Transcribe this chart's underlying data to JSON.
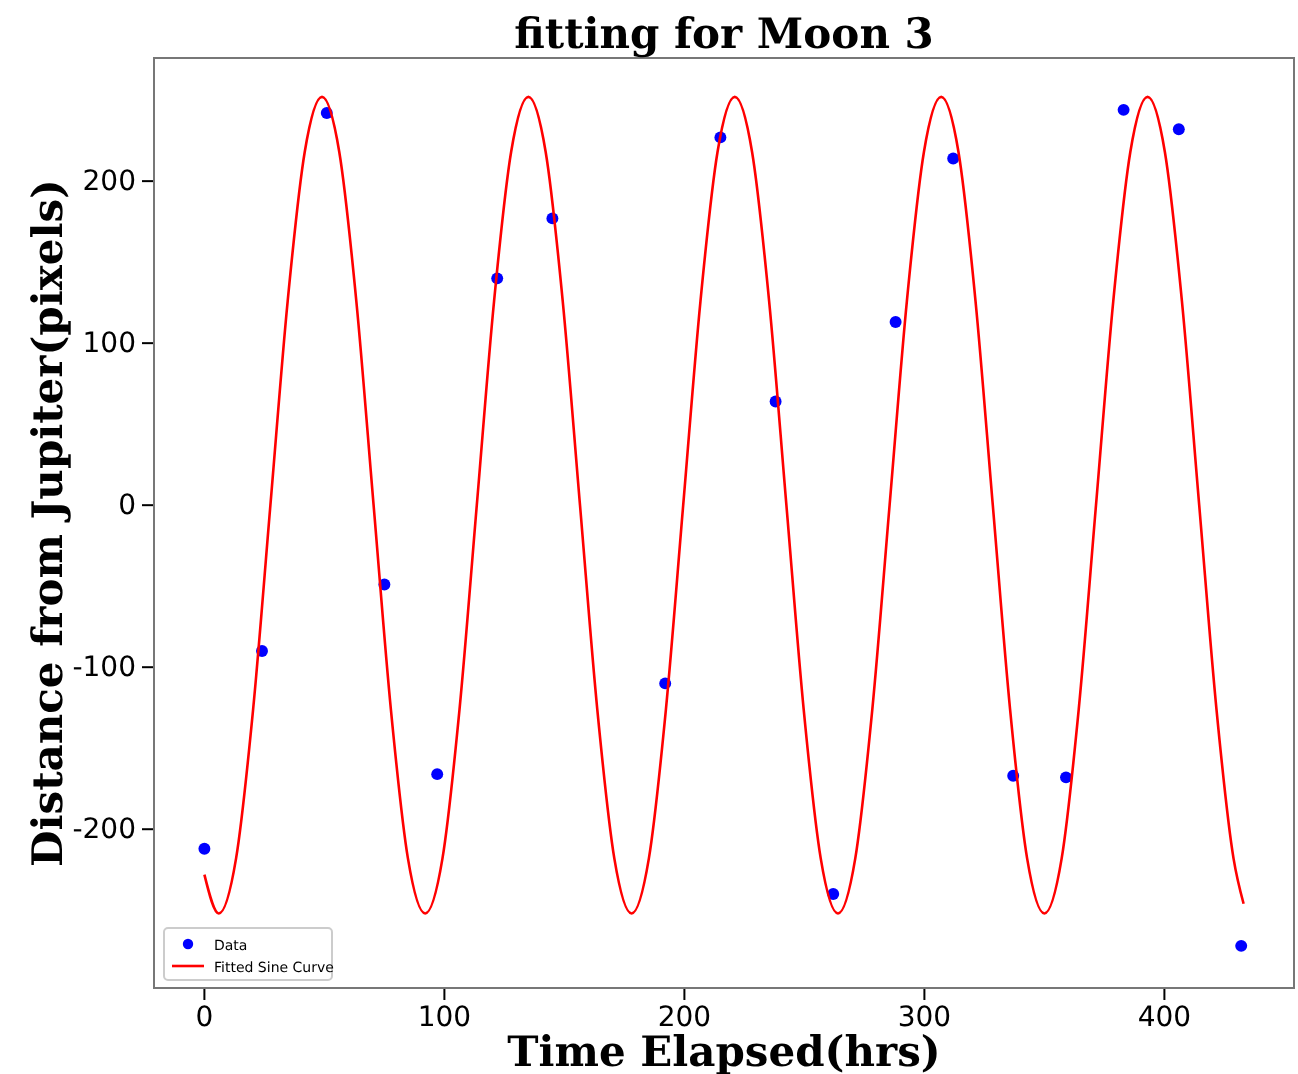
{
  "chart_data": {
    "type": "scatter",
    "title": "fitting for Moon 3",
    "xlabel": "Time Elapsed(hrs)",
    "ylabel": "Distance from Jupiter(pixels)",
    "xlim": [
      -21,
      454
    ],
    "ylim": [
      -298,
      276
    ],
    "xticks": [
      0,
      100,
      200,
      300,
      400
    ],
    "yticks": [
      -200,
      -100,
      0,
      100,
      200
    ],
    "grid": false,
    "legend": "bottom left",
    "series": [
      {
        "name": "Data",
        "color": "#0000ff",
        "marker": "circle",
        "x": [
          0,
          24,
          51,
          75,
          97,
          122,
          145,
          192,
          215,
          238,
          262,
          288,
          312,
          337,
          359,
          383,
          406,
          432
        ],
        "values": [
          -212,
          -90,
          242,
          -49,
          -166,
          140,
          177,
          -110,
          227,
          64,
          -240,
          113,
          214,
          -167,
          -168,
          244,
          232,
          -272
        ]
      },
      {
        "name": "Fitted Sine Curve",
        "type": "line",
        "color": "#ff0000",
        "line_style": "solid",
        "marker": "none",
        "x": [
          0,
          6,
          13.2,
          20.3,
          27.5,
          34.7,
          41.8,
          49,
          56.2,
          63.3,
          70.5,
          77.7,
          84.8,
          92,
          99.2,
          106.3,
          113.5,
          120.7,
          127.8,
          135,
          142.2,
          149.3,
          156.5,
          163.7,
          170.8,
          178,
          185.2,
          192.3,
          199.5,
          206.7,
          213.8,
          221,
          228.2,
          235.3,
          242.5,
          249.7,
          256.8,
          264,
          271.2,
          278.3,
          285.5,
          292.7,
          299.8,
          307,
          314.2,
          321.3,
          328.5,
          335.7,
          342.8,
          350,
          357.2,
          364.3,
          371.5,
          378.7,
          385.8,
          393,
          400.2,
          407.3,
          414.5,
          421.7,
          428.8,
          433
        ],
        "values": [
          -228,
          -252,
          -218,
          -126,
          0,
          126,
          218,
          252,
          218,
          126,
          0,
          -126,
          -218,
          -252,
          -218,
          -126,
          0,
          126,
          218,
          252,
          218,
          126,
          0,
          -126,
          -218,
          -252,
          -218,
          -126,
          0,
          126,
          218,
          252,
          218,
          126,
          0,
          -126,
          -218,
          -252,
          -218,
          -126,
          0,
          126,
          218,
          252,
          218,
          126,
          0,
          -126,
          -218,
          -252,
          -218,
          -126,
          0,
          126,
          218,
          252,
          218,
          126,
          0,
          -126,
          -218,
          -246
        ]
      }
    ]
  }
}
